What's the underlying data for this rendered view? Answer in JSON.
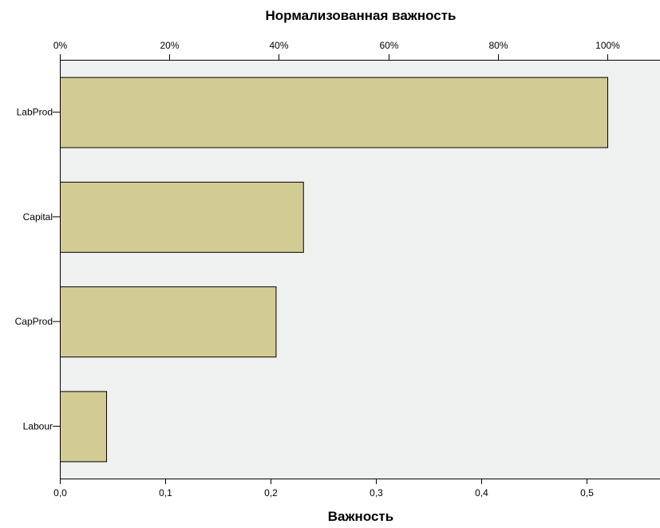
{
  "chart_data": {
    "type": "bar",
    "orientation": "horizontal",
    "title": "Нормализованная важность",
    "xlabel": "Важность",
    "ylabel": "",
    "categories": [
      "LabProd",
      "Capital",
      "CapProd",
      "Labour"
    ],
    "values": [
      0.52,
      0.231,
      0.205,
      0.044
    ],
    "xlim": [
      0,
      0.57
    ],
    "bottom_ticks": [
      {
        "value": 0.0,
        "label": "0,0"
      },
      {
        "value": 0.1,
        "label": "0,1"
      },
      {
        "value": 0.2,
        "label": "0,2"
      },
      {
        "value": 0.3,
        "label": "0,3"
      },
      {
        "value": 0.4,
        "label": "0,4"
      },
      {
        "value": 0.5,
        "label": "0,5"
      }
    ],
    "top_ticks": [
      {
        "value": 0.0,
        "label": "0%"
      },
      {
        "value": 0.104,
        "label": "20%"
      },
      {
        "value": 0.208,
        "label": "40%"
      },
      {
        "value": 0.312,
        "label": "60%"
      },
      {
        "value": 0.416,
        "label": "80%"
      },
      {
        "value": 0.52,
        "label": "100%"
      }
    ],
    "grid": false,
    "colors": {
      "bar_fill": "#d3cb94",
      "bar_stroke": "#000000",
      "plot_background": "#eff0f0"
    }
  }
}
